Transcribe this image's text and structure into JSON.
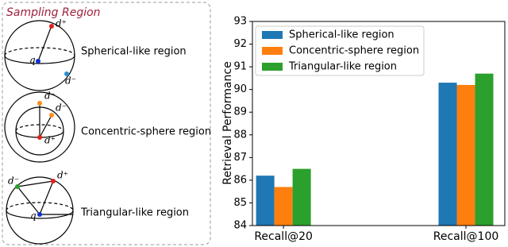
{
  "diagram": {
    "title": "Sampling Region",
    "panels": [
      {
        "label": "Spherical-like region",
        "points": [
          "d⁺",
          "q",
          "d⁻"
        ]
      },
      {
        "label": "Concentric-sphere region",
        "points": [
          "d⁻",
          "d⁻",
          "d⁺"
        ]
      },
      {
        "label": "Triangular-like region",
        "points": [
          "d⁻",
          "d⁺",
          "q"
        ]
      }
    ]
  },
  "chart_data": {
    "type": "bar",
    "ylabel": "Retrieval Performance",
    "categories": [
      "Recall@20",
      "Recall@100"
    ],
    "series": [
      {
        "name": "Spherical-like region",
        "color": "#1f77b4",
        "values": [
          86.2,
          90.3
        ]
      },
      {
        "name": "Concentric-sphere region",
        "color": "#ff7f0e",
        "values": [
          85.7,
          90.2
        ]
      },
      {
        "name": "Triangular-like region",
        "color": "#2ca02c",
        "values": [
          86.5,
          90.7
        ]
      }
    ],
    "ylim": [
      84,
      93
    ],
    "yticks": [
      84,
      85,
      86,
      87,
      88,
      89,
      90,
      91,
      92,
      93
    ],
    "legend": "upper left"
  }
}
